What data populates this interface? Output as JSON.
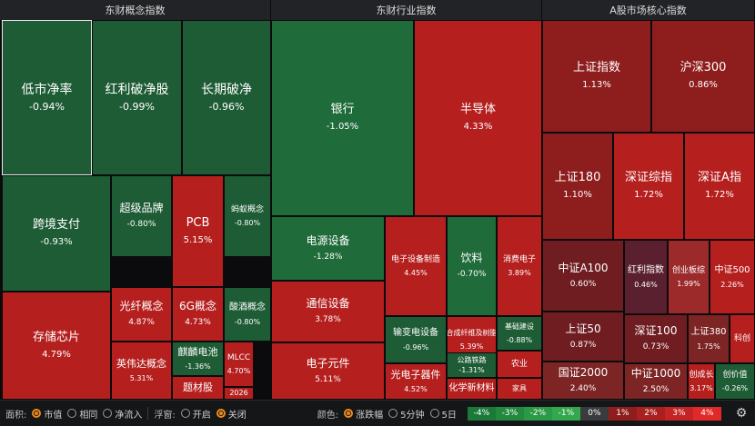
{
  "sections": [
    {
      "title": "东财概念指数"
    },
    {
      "title": "东财行业指数"
    },
    {
      "title": "A股市场核心指数"
    }
  ],
  "tiles": [
    {
      "name": "低市净率",
      "pct": "-0.94%",
      "change": -0.94
    },
    {
      "name": "红利破净股",
      "pct": "-0.99%",
      "change": -0.99
    },
    {
      "name": "长期破净",
      "pct": "-0.96%",
      "change": -0.96
    },
    {
      "name": "跨境支付",
      "pct": "-0.93%",
      "change": -0.93
    },
    {
      "name": "超级品牌",
      "pct": "-0.80%",
      "change": -0.8
    },
    {
      "name": "PCB",
      "pct": "5.15%",
      "change": 5.15
    },
    {
      "name": "蚂蚁概念",
      "pct": "-0.80%",
      "change": -0.8
    },
    {
      "name": "存储芯片",
      "pct": "4.79%",
      "change": 4.79
    },
    {
      "name": "光纤概念",
      "pct": "4.87%",
      "change": 4.87
    },
    {
      "name": "6G概念",
      "pct": "4.73%",
      "change": 4.73
    },
    {
      "name": "酸酒概念",
      "pct": "-0.80%",
      "change": -0.8
    },
    {
      "name": "英伟达概念",
      "pct": "5.31%",
      "change": 5.31
    },
    {
      "name": "麒麟电池",
      "pct": "-1.36%",
      "change": -1.36
    },
    {
      "name": "MLCC",
      "pct": "4.70%",
      "change": 4.7
    },
    {
      "name": "题材股",
      "pct": "",
      "change": null
    },
    {
      "name": "2026",
      "pct": "",
      "change": null
    },
    {
      "name": "银行",
      "pct": "-1.05%",
      "change": -1.05
    },
    {
      "name": "半导体",
      "pct": "4.33%",
      "change": 4.33
    },
    {
      "name": "电源设备",
      "pct": "-1.28%",
      "change": -1.28
    },
    {
      "name": "电子设备制造",
      "pct": "4.45%",
      "change": 4.45
    },
    {
      "name": "饮料",
      "pct": "-0.70%",
      "change": -0.7
    },
    {
      "name": "消费电子",
      "pct": "3.89%",
      "change": 3.89
    },
    {
      "name": "通信设备",
      "pct": "3.78%",
      "change": 3.78
    },
    {
      "name": "输变电设备",
      "pct": "-0.96%",
      "change": -0.96
    },
    {
      "name": "合成纤维及树脂",
      "pct": "5.39%",
      "change": 5.39
    },
    {
      "name": "基础建设",
      "pct": "-0.88%",
      "change": -0.88
    },
    {
      "name": "公路铁路",
      "pct": "-1.31%",
      "change": -1.31
    },
    {
      "name": "农业",
      "pct": "",
      "change": null
    },
    {
      "name": "电子元件",
      "pct": "5.11%",
      "change": 5.11
    },
    {
      "name": "光电子器件",
      "pct": "4.52%",
      "change": 4.52
    },
    {
      "name": "化学新材料",
      "pct": "",
      "change": null
    },
    {
      "name": "家具",
      "pct": "",
      "change": null
    },
    {
      "name": "上证指数",
      "pct": "1.13%",
      "change": 1.13
    },
    {
      "name": "沪深300",
      "pct": "0.86%",
      "change": 0.86
    },
    {
      "name": "上证180",
      "pct": "1.10%",
      "change": 1.1
    },
    {
      "name": "深证综指",
      "pct": "1.72%",
      "change": 1.72
    },
    {
      "name": "深证A指",
      "pct": "1.72%",
      "change": 1.72
    },
    {
      "name": "中证A100",
      "pct": "0.60%",
      "change": 0.6
    },
    {
      "name": "红利指数",
      "pct": "0.46%",
      "change": 0.46
    },
    {
      "name": "创业板综",
      "pct": "1.99%",
      "change": 1.99
    },
    {
      "name": "中证500",
      "pct": "2.26%",
      "change": 2.26
    },
    {
      "name": "上证50",
      "pct": "0.87%",
      "change": 0.87
    },
    {
      "name": "深证100",
      "pct": "0.73%",
      "change": 0.73
    },
    {
      "name": "上证380",
      "pct": "1.75%",
      "change": 1.75
    },
    {
      "name": "科创",
      "pct": "",
      "change": null
    },
    {
      "name": "国证2000",
      "pct": "2.40%",
      "change": 2.4
    },
    {
      "name": "中证1000",
      "pct": "2.50%",
      "change": 2.5
    },
    {
      "name": "创成长",
      "pct": "3.17%",
      "change": 3.17
    },
    {
      "name": "创价值",
      "pct": "-0.26%",
      "change": -0.26
    }
  ],
  "toolbar": {
    "area_label": "面积:",
    "area_options": [
      "市值",
      "相同",
      "净流入"
    ],
    "area_selected": "市值",
    "float_label": "浮窗:",
    "float_options": [
      "开启",
      "关闭"
    ],
    "float_selected": "关闭",
    "color_label": "颜色:",
    "color_options": [
      "涨跌幅",
      "5分钟",
      "5日"
    ],
    "color_selected": "涨跌幅"
  },
  "legend": [
    {
      "label": "-4%",
      "color": "#1b7a3a"
    },
    {
      "label": "-3%",
      "color": "#23893f"
    },
    {
      "label": "-2%",
      "color": "#2a9a47"
    },
    {
      "label": "-1%",
      "color": "#34a84f"
    },
    {
      "label": "0%",
      "color": "#3a3b3e"
    },
    {
      "label": "1%",
      "color": "#8e1d1d"
    },
    {
      "label": "2%",
      "color": "#a82020"
    },
    {
      "label": "3%",
      "color": "#c42424"
    },
    {
      "label": "4%",
      "color": "#e02a2a"
    }
  ],
  "settings_icon": "gear-icon"
}
